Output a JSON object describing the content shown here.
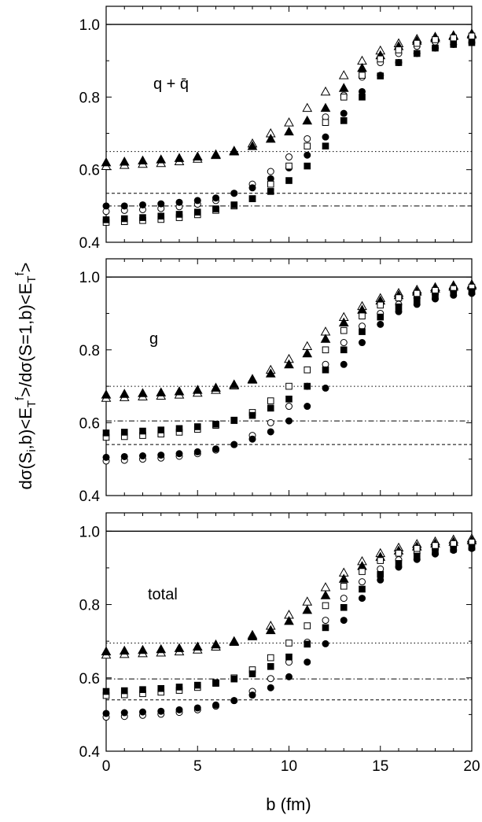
{
  "chart_data": {
    "type": "scatter",
    "xlabel": "b (fm)",
    "ylabel": "dσ(S_i,b)<E_T^f>/dσ(S=1,b)<E_T^f>",
    "xlim": [
      0,
      20
    ],
    "ylim": [
      0.4,
      1.05
    ],
    "x_ticks": [
      "0",
      "5",
      "10",
      "15",
      "20"
    ],
    "y_ticks": [
      "0.4",
      "0.6",
      "0.8",
      "1.0"
    ],
    "panels": [
      {
        "label": "q + q̄",
        "reference_lines": [
          {
            "style": "solid",
            "y": 1.0
          },
          {
            "style": "dotted",
            "y": 0.65
          },
          {
            "style": "dashed",
            "y": 0.535
          },
          {
            "style": "dashdot",
            "y": 0.5
          }
        ],
        "series": [
          {
            "marker": "open-triangle",
            "x": [
              0,
              1,
              2,
              3,
              4,
              5,
              6,
              7,
              8,
              9,
              10,
              11,
              12,
              13,
              14,
              15,
              16,
              17,
              18,
              19,
              20
            ],
            "y": [
              0.61,
              0.613,
              0.616,
              0.618,
              0.623,
              0.63,
              0.64,
              0.652,
              0.672,
              0.7,
              0.73,
              0.77,
              0.815,
              0.86,
              0.9,
              0.928,
              0.948,
              0.96,
              0.966,
              0.97,
              0.975
            ]
          },
          {
            "marker": "filled-triangle",
            "x": [
              0,
              1,
              2,
              3,
              4,
              5,
              6,
              7,
              8,
              9,
              10,
              11,
              12,
              13,
              14,
              15,
              16,
              17,
              18,
              19,
              20
            ],
            "y": [
              0.62,
              0.622,
              0.625,
              0.628,
              0.632,
              0.636,
              0.642,
              0.65,
              0.665,
              0.685,
              0.705,
              0.735,
              0.77,
              0.825,
              0.88,
              0.915,
              0.94,
              0.955,
              0.962,
              0.968,
              0.972
            ]
          },
          {
            "marker": "open-circle",
            "x": [
              0,
              1,
              2,
              3,
              4,
              5,
              6,
              7,
              8,
              9,
              10,
              11,
              12,
              13,
              14,
              15,
              16,
              17,
              18,
              19,
              20
            ],
            "y": [
              0.485,
              0.488,
              0.49,
              0.493,
              0.498,
              0.505,
              0.515,
              0.535,
              0.56,
              0.595,
              0.635,
              0.685,
              0.745,
              0.805,
              0.855,
              0.895,
              0.92,
              0.94,
              0.952,
              0.958,
              0.963
            ]
          },
          {
            "marker": "filled-circle",
            "x": [
              0,
              1,
              2,
              3,
              4,
              5,
              6,
              7,
              8,
              9,
              10,
              11,
              12,
              13,
              14,
              15,
              16,
              17,
              18,
              19,
              20
            ],
            "y": [
              0.5,
              0.5,
              0.503,
              0.506,
              0.51,
              0.515,
              0.522,
              0.535,
              0.55,
              0.575,
              0.605,
              0.64,
              0.69,
              0.755,
              0.815,
              0.86,
              0.895,
              0.92,
              0.935,
              0.945,
              0.95
            ]
          },
          {
            "marker": "open-square",
            "x": [
              0,
              1,
              2,
              3,
              4,
              5,
              6,
              7,
              8,
              9,
              10,
              11,
              12,
              13,
              14,
              15,
              16,
              17,
              18,
              19,
              20
            ],
            "y": [
              0.455,
              0.457,
              0.46,
              0.463,
              0.468,
              0.476,
              0.488,
              0.5,
              0.52,
              0.56,
              0.61,
              0.665,
              0.73,
              0.8,
              0.86,
              0.905,
              0.93,
              0.948,
              0.958,
              0.963,
              0.968
            ]
          },
          {
            "marker": "filled-square",
            "x": [
              0,
              1,
              2,
              3,
              4,
              5,
              6,
              7,
              8,
              9,
              10,
              11,
              12,
              13,
              14,
              15,
              16,
              17,
              18,
              19,
              20
            ],
            "y": [
              0.462,
              0.465,
              0.468,
              0.472,
              0.477,
              0.483,
              0.492,
              0.503,
              0.52,
              0.54,
              0.57,
              0.61,
              0.665,
              0.735,
              0.8,
              0.858,
              0.895,
              0.92,
              0.935,
              0.945,
              0.95
            ]
          }
        ]
      },
      {
        "label": "g",
        "reference_lines": [
          {
            "style": "solid",
            "y": 1.0
          },
          {
            "style": "dotted",
            "y": 0.7
          },
          {
            "style": "dashdot",
            "y": 0.605
          },
          {
            "style": "dashed",
            "y": 0.54
          }
        ],
        "series": [
          {
            "marker": "open-triangle",
            "x": [
              0,
              1,
              2,
              3,
              4,
              5,
              6,
              7,
              8,
              9,
              10,
              11,
              12,
              13,
              14,
              15,
              16,
              17,
              18,
              19,
              20
            ],
            "y": [
              0.668,
              0.67,
              0.672,
              0.674,
              0.677,
              0.682,
              0.69,
              0.702,
              0.72,
              0.745,
              0.775,
              0.81,
              0.85,
              0.89,
              0.92,
              0.942,
              0.956,
              0.965,
              0.972,
              0.977,
              0.98
            ]
          },
          {
            "marker": "filled-triangle",
            "x": [
              0,
              1,
              2,
              3,
              4,
              5,
              6,
              7,
              8,
              9,
              10,
              11,
              12,
              13,
              14,
              15,
              16,
              17,
              18,
              19,
              20
            ],
            "y": [
              0.677,
              0.679,
              0.681,
              0.683,
              0.686,
              0.69,
              0.696,
              0.705,
              0.718,
              0.735,
              0.76,
              0.79,
              0.83,
              0.875,
              0.91,
              0.935,
              0.95,
              0.96,
              0.968,
              0.973,
              0.976
            ]
          },
          {
            "marker": "open-circle",
            "x": [
              0,
              1,
              2,
              3,
              4,
              5,
              6,
              7,
              8,
              9,
              10,
              11,
              12,
              13,
              14,
              15,
              16,
              17,
              18,
              19,
              20
            ],
            "y": [
              0.495,
              0.497,
              0.5,
              0.503,
              0.508,
              0.515,
              0.525,
              0.54,
              0.565,
              0.6,
              0.645,
              0.7,
              0.76,
              0.82,
              0.865,
              0.9,
              0.925,
              0.942,
              0.953,
              0.96,
              0.965
            ]
          },
          {
            "marker": "filled-circle",
            "x": [
              0,
              1,
              2,
              3,
              4,
              5,
              6,
              7,
              8,
              9,
              10,
              11,
              12,
              13,
              14,
              15,
              16,
              17,
              18,
              19,
              20
            ],
            "y": [
              0.505,
              0.507,
              0.509,
              0.511,
              0.515,
              0.52,
              0.528,
              0.54,
              0.555,
              0.575,
              0.605,
              0.645,
              0.695,
              0.76,
              0.82,
              0.87,
              0.905,
              0.925,
              0.94,
              0.95,
              0.955
            ]
          },
          {
            "marker": "open-square",
            "x": [
              0,
              1,
              2,
              3,
              4,
              5,
              6,
              7,
              8,
              9,
              10,
              11,
              12,
              13,
              14,
              15,
              16,
              17,
              18,
              19,
              20
            ],
            "y": [
              0.56,
              0.562,
              0.565,
              0.569,
              0.574,
              0.582,
              0.593,
              0.607,
              0.628,
              0.66,
              0.7,
              0.745,
              0.8,
              0.853,
              0.893,
              0.923,
              0.943,
              0.955,
              0.963,
              0.968,
              0.972
            ]
          },
          {
            "marker": "filled-square",
            "x": [
              0,
              1,
              2,
              3,
              4,
              5,
              6,
              7,
              8,
              9,
              10,
              11,
              12,
              13,
              14,
              15,
              16,
              17,
              18,
              19,
              20
            ],
            "y": [
              0.572,
              0.574,
              0.577,
              0.58,
              0.584,
              0.589,
              0.596,
              0.606,
              0.62,
              0.64,
              0.665,
              0.7,
              0.745,
              0.8,
              0.85,
              0.89,
              0.918,
              0.937,
              0.948,
              0.955,
              0.96
            ]
          }
        ]
      },
      {
        "label": "total",
        "reference_lines": [
          {
            "style": "solid",
            "y": 1.0
          },
          {
            "style": "dotted",
            "y": 0.695
          },
          {
            "style": "dashdot",
            "y": 0.597
          },
          {
            "style": "dashed",
            "y": 0.54
          }
        ],
        "series": [
          {
            "marker": "open-triangle",
            "x": [
              0,
              1,
              2,
              3,
              4,
              5,
              6,
              7,
              8,
              9,
              10,
              11,
              12,
              13,
              14,
              15,
              16,
              17,
              18,
              19,
              20
            ],
            "y": [
              0.663,
              0.665,
              0.667,
              0.669,
              0.672,
              0.677,
              0.685,
              0.698,
              0.717,
              0.742,
              0.772,
              0.808,
              0.847,
              0.887,
              0.918,
              0.94,
              0.955,
              0.965,
              0.972,
              0.977,
              0.98
            ]
          },
          {
            "marker": "filled-triangle",
            "x": [
              0,
              1,
              2,
              3,
              4,
              5,
              6,
              7,
              8,
              9,
              10,
              11,
              12,
              13,
              14,
              15,
              16,
              17,
              18,
              19,
              20
            ],
            "y": [
              0.672,
              0.674,
              0.676,
              0.678,
              0.681,
              0.685,
              0.691,
              0.7,
              0.713,
              0.73,
              0.755,
              0.785,
              0.825,
              0.87,
              0.905,
              0.93,
              0.947,
              0.958,
              0.966,
              0.971,
              0.975
            ]
          },
          {
            "marker": "open-circle",
            "x": [
              0,
              1,
              2,
              3,
              4,
              5,
              6,
              7,
              8,
              9,
              10,
              11,
              12,
              13,
              14,
              15,
              16,
              17,
              18,
              19,
              20
            ],
            "y": [
              0.493,
              0.495,
              0.498,
              0.501,
              0.506,
              0.513,
              0.523,
              0.538,
              0.563,
              0.598,
              0.643,
              0.697,
              0.757,
              0.817,
              0.862,
              0.897,
              0.922,
              0.94,
              0.951,
              0.958,
              0.963
            ]
          },
          {
            "marker": "filled-circle",
            "x": [
              0,
              1,
              2,
              3,
              4,
              5,
              6,
              7,
              8,
              9,
              10,
              11,
              12,
              13,
              14,
              15,
              16,
              17,
              18,
              19,
              20
            ],
            "y": [
              0.503,
              0.505,
              0.507,
              0.509,
              0.513,
              0.518,
              0.526,
              0.538,
              0.553,
              0.573,
              0.603,
              0.643,
              0.693,
              0.757,
              0.817,
              0.867,
              0.902,
              0.923,
              0.938,
              0.948,
              0.953
            ]
          },
          {
            "marker": "open-square",
            "x": [
              0,
              1,
              2,
              3,
              4,
              5,
              6,
              7,
              8,
              9,
              10,
              11,
              12,
              13,
              14,
              15,
              16,
              17,
              18,
              19,
              20
            ],
            "y": [
              0.552,
              0.554,
              0.557,
              0.561,
              0.566,
              0.574,
              0.585,
              0.6,
              0.622,
              0.655,
              0.695,
              0.742,
              0.797,
              0.85,
              0.89,
              0.92,
              0.94,
              0.953,
              0.961,
              0.966,
              0.97
            ]
          },
          {
            "marker": "filled-square",
            "x": [
              0,
              1,
              2,
              3,
              4,
              5,
              6,
              7,
              8,
              9,
              10,
              11,
              12,
              13,
              14,
              15,
              16,
              17,
              18,
              19,
              20
            ],
            "y": [
              0.563,
              0.565,
              0.568,
              0.571,
              0.575,
              0.58,
              0.587,
              0.597,
              0.611,
              0.631,
              0.657,
              0.692,
              0.737,
              0.792,
              0.842,
              0.882,
              0.912,
              0.932,
              0.944,
              0.951,
              0.956
            ]
          }
        ]
      }
    ]
  }
}
